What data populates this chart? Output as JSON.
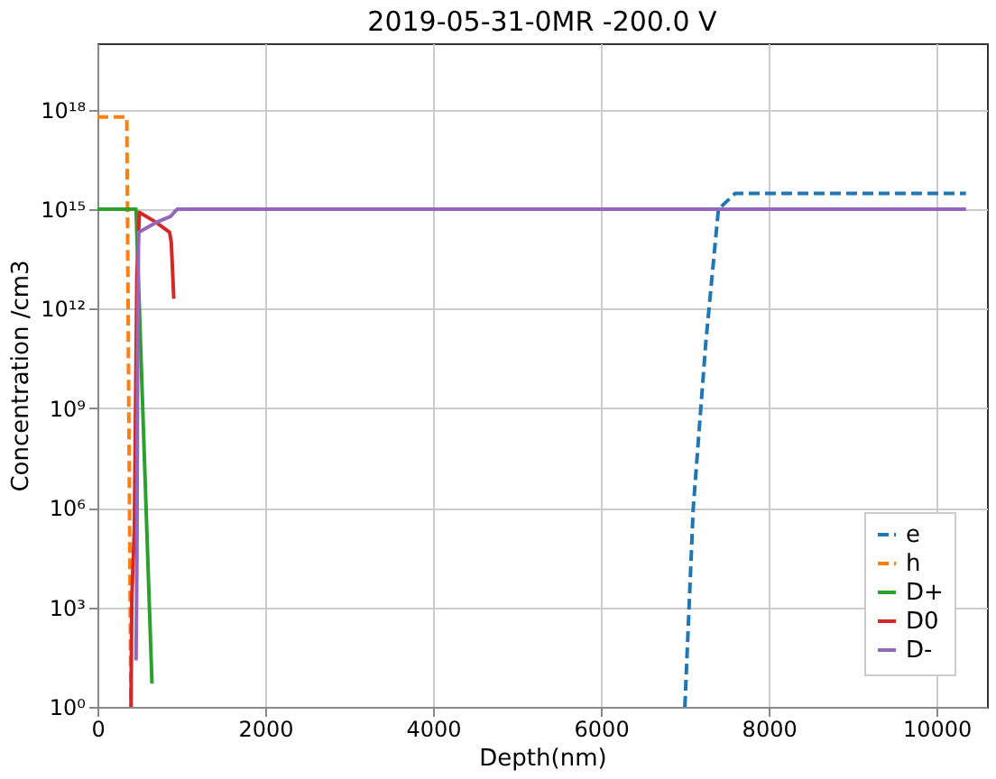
{
  "chart_data": {
    "type": "line",
    "title": "2019-05-31-0MR -200.0 V",
    "xlabel": "Depth(nm)",
    "ylabel": "Concentration /cm3",
    "xlim": [
      0,
      10600
    ],
    "xticks": [
      0,
      2000,
      4000,
      6000,
      8000,
      10000
    ],
    "ylim": [
      1,
      1e+20
    ],
    "log": true,
    "yticks": [
      {
        "value": 1,
        "label": "10⁰"
      },
      {
        "value": 1000,
        "label": "10³"
      },
      {
        "value": 1000000,
        "label": "10⁶"
      },
      {
        "value": 1000000000,
        "label": "10⁹"
      },
      {
        "value": 1000000000000,
        "label": "10¹²"
      },
      {
        "value": 1000000000000000,
        "label": "10¹⁵"
      },
      {
        "value": 1000000000000000000,
        "label": "10¹⁸"
      }
    ],
    "grid": true,
    "legend": "bottom right",
    "series": [
      {
        "name": "e",
        "color": "#1f77b4",
        "line_style": "dashed",
        "x": [
          7000,
          7100,
          7250,
          7400,
          7600,
          10350
        ],
        "values": [
          1,
          1000000,
          100000000000,
          1000000000000000,
          3000000000000000,
          3000000000000000
        ]
      },
      {
        "name": "h",
        "color": "#ff7f0e",
        "line_style": "dashed",
        "x": [
          0,
          350,
          390,
          400
        ],
        "values": [
          600000000000000000,
          600000000000000000,
          1000,
          1
        ]
      },
      {
        "name": "D+",
        "color": "#2ca02c",
        "line_style": "solid",
        "x": [
          0,
          460,
          650
        ],
        "values": [
          1000000000000000,
          1000000000000000,
          5
        ]
      },
      {
        "name": "D0",
        "color": "#d62728",
        "line_style": "solid",
        "x": [
          400,
          410,
          440,
          470,
          500,
          700,
          860,
          880,
          910
        ],
        "values": [
          1,
          2000,
          250000,
          10000000000000,
          800000000000000,
          400000000000000,
          200000000000000,
          100000000000000,
          2000000000000
        ]
      },
      {
        "name": "D-",
        "color": "#9467bd",
        "line_style": "solid",
        "x": [
          460,
          470,
          480,
          490,
          700,
          870,
          950,
          10350
        ],
        "values": [
          25,
          20000,
          100000000000,
          200000000000000,
          400000000000000,
          600000000000000,
          1000000000000000,
          1000000000000000
        ]
      }
    ]
  }
}
